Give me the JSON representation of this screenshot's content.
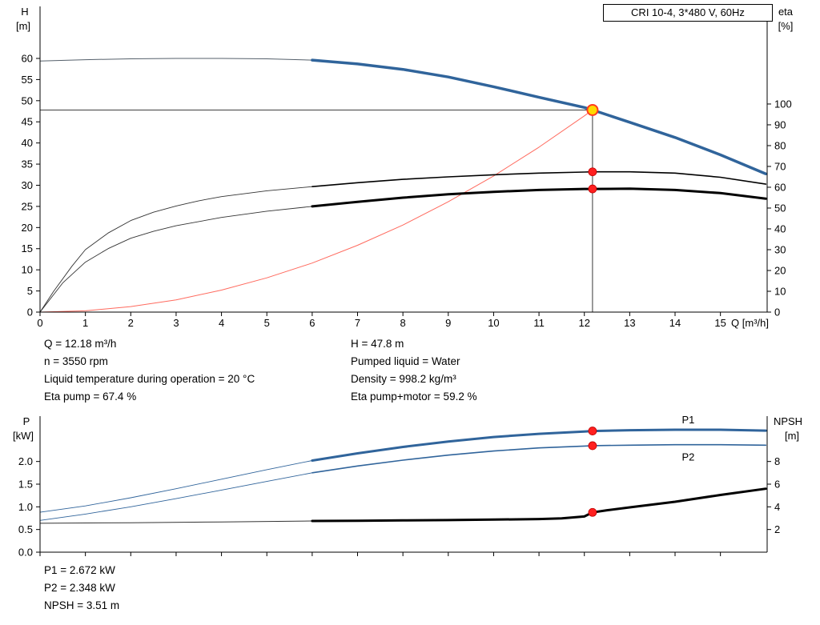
{
  "title_box": "CRI 10-4, 3*480 V, 60Hz",
  "info_top": {
    "left": [
      "Q = 12.18 m³/h",
      "n = 3550 rpm",
      "Liquid temperature during operation = 20 °C",
      "Eta pump = 67.4 %"
    ],
    "right": [
      "H = 47.8 m",
      "Pumped liquid = Water",
      "Density = 998.2 kg/m³",
      "Eta pump+motor = 59.2 %"
    ]
  },
  "info_bottom": [
    "P1 = 2.672 kW",
    "P2 = 2.348 kW",
    "NPSH = 3.51 m"
  ],
  "colors": {
    "curve_blue": "#30649b",
    "curve_black": "#000000",
    "thin_gray": "#55606b",
    "thin_dark": "#333333",
    "system_red": "#ff6a5e",
    "dot_red": "#ff2020",
    "dot_edge": "#c00000",
    "duty_fill": "#ffd900",
    "duty_ring": "#ff3b1f",
    "ref_line": "#222222"
  },
  "chart_data": [
    {
      "type": "line",
      "title": "CRI 10-4, 3*480 V, 60Hz",
      "grid": false,
      "x_axis": {
        "label": "Q [m³/h]",
        "min": 0,
        "max": 16.03,
        "tick_values": [
          0,
          1,
          2,
          3,
          4,
          5,
          6,
          7,
          8,
          9,
          10,
          11,
          12,
          13,
          14,
          15
        ],
        "tick_labels": [
          "0",
          "1",
          "2",
          "3",
          "4",
          "5",
          "6",
          "7",
          "8",
          "9",
          "10",
          "11",
          "12",
          "13",
          "14",
          "15"
        ]
      },
      "y_left": {
        "label": "H",
        "unit": "[m]",
        "min": 0,
        "max": 72.3,
        "tick_values": [
          0,
          5,
          10,
          15,
          20,
          25,
          30,
          35,
          40,
          45,
          50,
          55,
          60
        ],
        "tick_labels": [
          "0",
          "5",
          "10",
          "15",
          "20",
          "25",
          "30",
          "35",
          "40",
          "45",
          "50",
          "55",
          "60"
        ]
      },
      "y_right": {
        "label": "eta",
        "unit": "[%]",
        "min": 0,
        "max": 146.9,
        "tick_values": [
          0,
          10,
          20,
          30,
          40,
          50,
          60,
          70,
          80,
          90,
          100
        ],
        "tick_labels": [
          "0",
          "10",
          "20",
          "30",
          "40",
          "50",
          "60",
          "70",
          "80",
          "90",
          "100"
        ]
      },
      "series": [
        {
          "name": "pump-curve-ext",
          "axis": "left",
          "color": "#55606b",
          "width": 1,
          "points": [
            [
              0,
              59.4
            ],
            [
              1,
              59.7
            ],
            [
              2,
              59.9
            ],
            [
              3,
              60.0
            ],
            [
              4,
              60.0
            ],
            [
              5,
              59.9
            ],
            [
              6,
              59.6
            ]
          ]
        },
        {
          "name": "pump-curve",
          "axis": "left",
          "color": "#30649b",
          "width": 3.5,
          "points": [
            [
              6,
              59.6
            ],
            [
              7,
              58.7
            ],
            [
              8,
              57.4
            ],
            [
              9,
              55.6
            ],
            [
              10,
              53.3
            ],
            [
              11,
              50.8
            ],
            [
              12,
              48.4
            ],
            [
              12.18,
              47.8
            ],
            [
              13,
              44.9
            ],
            [
              14,
              41.3
            ],
            [
              15,
              37.2
            ],
            [
              16,
              32.7
            ]
          ]
        },
        {
          "name": "system-curve",
          "axis": "left",
          "color": "#ff6a5e",
          "width": 1,
          "points": [
            [
              0,
              0
            ],
            [
              1,
              0.3
            ],
            [
              2,
              1.3
            ],
            [
              3,
              2.9
            ],
            [
              4,
              5.2
            ],
            [
              5,
              8.1
            ],
            [
              6,
              11.6
            ],
            [
              7,
              15.8
            ],
            [
              8,
              20.6
            ],
            [
              9,
              26.1
            ],
            [
              10,
              32.2
            ],
            [
              11,
              39.0
            ],
            [
              12,
              46.4
            ],
            [
              12.18,
              47.8
            ]
          ]
        },
        {
          "name": "eta-pump-ext",
          "axis": "right",
          "color": "#333333",
          "width": 0.9,
          "points": [
            [
              0,
              0
            ],
            [
              0.3,
              10
            ],
            [
              0.7,
              22
            ],
            [
              1,
              30
            ],
            [
              1.5,
              38
            ],
            [
              2,
              44
            ],
            [
              2.5,
              48
            ],
            [
              3,
              51
            ],
            [
              3.5,
              53.5
            ],
            [
              4,
              55.5
            ],
            [
              5,
              58.3
            ],
            [
              6,
              60.3
            ]
          ]
        },
        {
          "name": "eta-pump",
          "axis": "right",
          "color": "#000000",
          "width": 1.6,
          "points": [
            [
              6,
              60.3
            ],
            [
              7,
              62.2
            ],
            [
              8,
              63.8
            ],
            [
              9,
              65.0
            ],
            [
              10,
              66.0
            ],
            [
              11,
              66.8
            ],
            [
              12,
              67.3
            ],
            [
              12.18,
              67.4
            ],
            [
              13,
              67.4
            ],
            [
              14,
              66.8
            ],
            [
              15,
              64.8
            ],
            [
              16,
              61.5
            ]
          ]
        },
        {
          "name": "eta-pump-motor-ext",
          "axis": "right",
          "color": "#333333",
          "width": 0.9,
          "points": [
            [
              0,
              0
            ],
            [
              0.5,
              14
            ],
            [
              1,
              24
            ],
            [
              1.5,
              30.5
            ],
            [
              2,
              35.5
            ],
            [
              2.5,
              38.8
            ],
            [
              3,
              41.5
            ],
            [
              4,
              45.5
            ],
            [
              5,
              48.5
            ],
            [
              6,
              50.8
            ]
          ]
        },
        {
          "name": "eta-pump-motor",
          "axis": "right",
          "color": "#000000",
          "width": 3,
          "points": [
            [
              6,
              50.8
            ],
            [
              7,
              53.0
            ],
            [
              8,
              55.0
            ],
            [
              9,
              56.6
            ],
            [
              10,
              57.8
            ],
            [
              11,
              58.7
            ],
            [
              12,
              59.2
            ],
            [
              12.18,
              59.2
            ],
            [
              13,
              59.3
            ],
            [
              14,
              58.7
            ],
            [
              15,
              57.2
            ],
            [
              16,
              54.5
            ]
          ]
        }
      ],
      "ref_lines": {
        "h_value": 47.8,
        "v_q": 12.18
      },
      "duty_point": {
        "q": 12.18,
        "value": 47.8,
        "axis": "left"
      },
      "dots": [
        {
          "q": 12.18,
          "value": 67.4,
          "axis": "right"
        },
        {
          "q": 12.18,
          "value": 59.2,
          "axis": "right"
        }
      ],
      "annotations": []
    },
    {
      "type": "line",
      "title": "",
      "grid": false,
      "x_axis": {
        "label": "",
        "min": 0,
        "max": 16.03,
        "tick_values": [
          0,
          1,
          2,
          3,
          4,
          5,
          6,
          7,
          8,
          9,
          10,
          11,
          12,
          13,
          14,
          15
        ]
      },
      "y_left": {
        "label": "P",
        "unit": "[kW]",
        "min": 0,
        "max": 3,
        "tick_values": [
          0,
          0.5,
          1,
          1.5,
          2
        ],
        "tick_labels": [
          "0.0",
          "0.5",
          "1.0",
          "1.5",
          "2.0"
        ]
      },
      "y_right": {
        "label": "NPSH",
        "unit": "[m]",
        "min": 0,
        "max": 12,
        "tick_values": [
          2,
          4,
          6,
          8
        ],
        "tick_labels": [
          "2",
          "4",
          "6",
          "8"
        ]
      },
      "series": [
        {
          "name": "p1-ext",
          "axis": "left",
          "color": "#30649b",
          "width": 0.9,
          "points": [
            [
              0,
              0.88
            ],
            [
              1,
              1.02
            ],
            [
              2,
              1.2
            ],
            [
              3,
              1.4
            ],
            [
              4,
              1.61
            ],
            [
              5,
              1.82
            ],
            [
              6,
              2.02
            ]
          ]
        },
        {
          "name": "p1",
          "axis": "left",
          "color": "#30649b",
          "width": 3,
          "points": [
            [
              6,
              2.02
            ],
            [
              7,
              2.18
            ],
            [
              8,
              2.32
            ],
            [
              9,
              2.44
            ],
            [
              10,
              2.54
            ],
            [
              11,
              2.61
            ],
            [
              12,
              2.66
            ],
            [
              12.18,
              2.672
            ],
            [
              13,
              2.69
            ],
            [
              14,
              2.7
            ],
            [
              15,
              2.7
            ],
            [
              16,
              2.68
            ]
          ]
        },
        {
          "name": "p2-ext",
          "axis": "left",
          "color": "#30649b",
          "width": 0.9,
          "points": [
            [
              0,
              0.7
            ],
            [
              1,
              0.84
            ],
            [
              2,
              1.0
            ],
            [
              3,
              1.18
            ],
            [
              4,
              1.37
            ],
            [
              5,
              1.56
            ],
            [
              6,
              1.75
            ]
          ]
        },
        {
          "name": "p2",
          "axis": "left",
          "color": "#30649b",
          "width": 1.6,
          "points": [
            [
              6,
              1.75
            ],
            [
              7,
              1.9
            ],
            [
              8,
              2.03
            ],
            [
              9,
              2.14
            ],
            [
              10,
              2.23
            ],
            [
              11,
              2.3
            ],
            [
              12,
              2.34
            ],
            [
              12.18,
              2.348
            ],
            [
              13,
              2.36
            ],
            [
              14,
              2.37
            ],
            [
              15,
              2.37
            ],
            [
              16,
              2.36
            ]
          ]
        },
        {
          "name": "npsh-ext",
          "axis": "right",
          "color": "#333333",
          "width": 1,
          "points": [
            [
              0,
              2.55
            ],
            [
              2,
              2.6
            ],
            [
              4,
              2.67
            ],
            [
              6,
              2.75
            ]
          ]
        },
        {
          "name": "npsh",
          "axis": "right",
          "color": "#000000",
          "width": 3,
          "points": [
            [
              6,
              2.75
            ],
            [
              7,
              2.77
            ],
            [
              8,
              2.8
            ],
            [
              9,
              2.83
            ],
            [
              10,
              2.87
            ],
            [
              11,
              2.92
            ],
            [
              11.5,
              2.98
            ],
            [
              12,
              3.15
            ],
            [
              12.18,
              3.51
            ],
            [
              12.5,
              3.7
            ],
            [
              13,
              3.95
            ],
            [
              14,
              4.45
            ],
            [
              15,
              5.05
            ],
            [
              16,
              5.6
            ]
          ]
        }
      ],
      "dots": [
        {
          "q": 12.18,
          "value": 2.672,
          "axis": "left"
        },
        {
          "q": 12.18,
          "value": 2.348,
          "axis": "left"
        },
        {
          "q": 12.18,
          "value": 3.51,
          "axis": "right"
        }
      ],
      "annotations": [
        {
          "text": "P1",
          "q": 14.15,
          "value": 2.84,
          "axis": "left",
          "color": "#30649b"
        },
        {
          "text": "P2",
          "q": 14.15,
          "value": 2.02,
          "axis": "left",
          "color": "#30649b"
        }
      ]
    }
  ]
}
